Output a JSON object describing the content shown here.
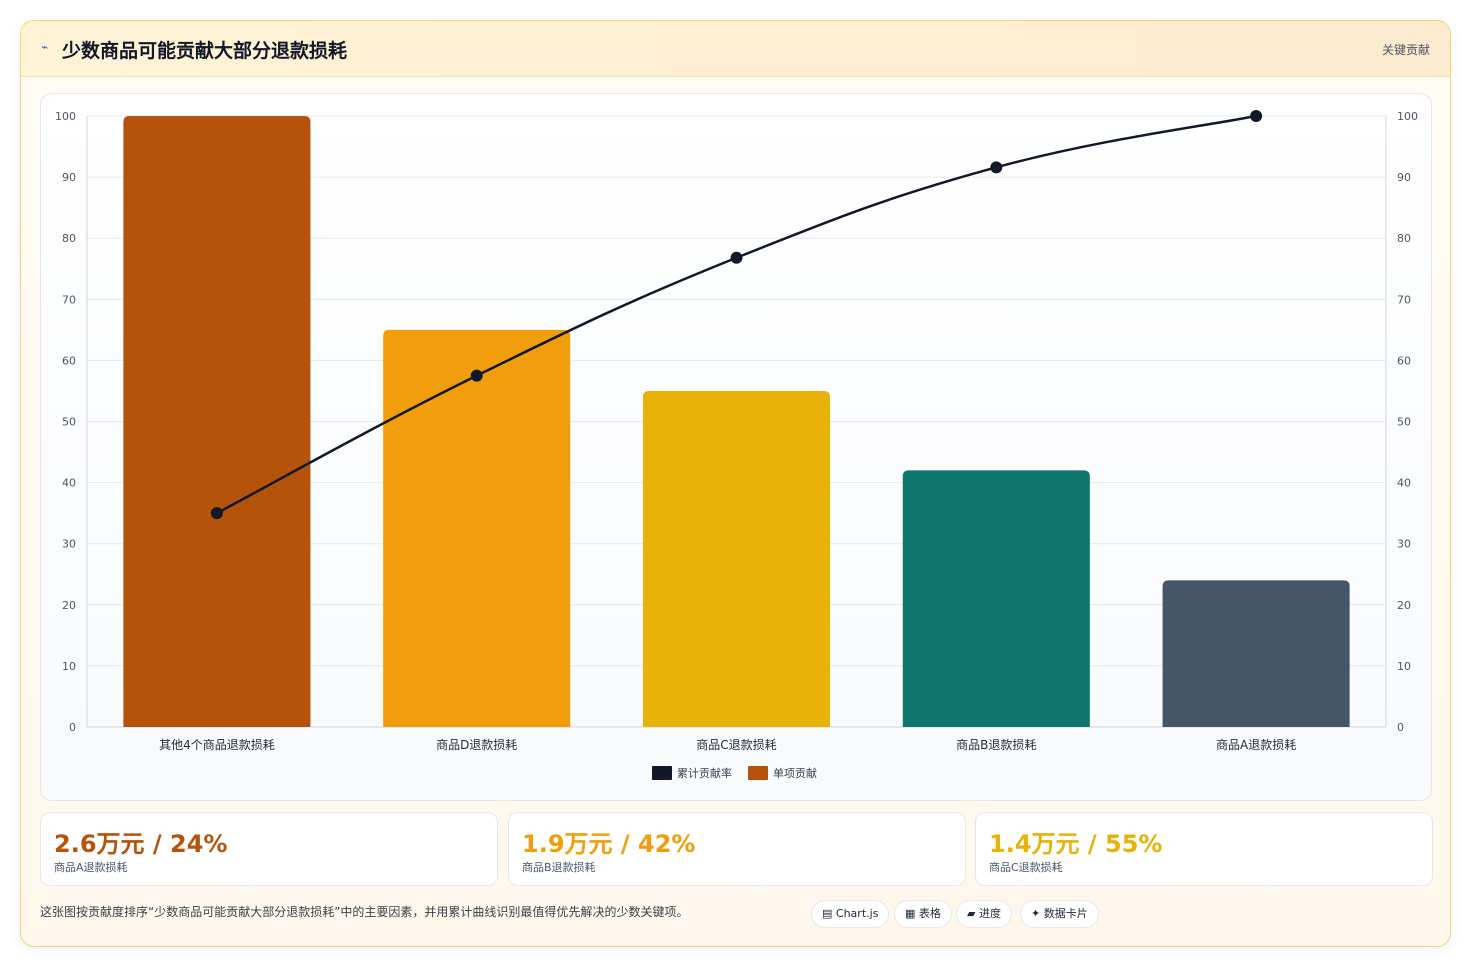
{
  "header": {
    "icon": "chart-icon",
    "title": "少数商品可能贡献大部分退款损耗",
    "right_label": "关键贡献"
  },
  "chart_data": {
    "type": "bar",
    "categories": [
      "其他4个商品退款损耗",
      "商品D退款损耗",
      "商品C退款损耗",
      "商品B退款损耗",
      "商品A退款损耗"
    ],
    "series": [
      {
        "name": "单项贡献",
        "type": "bar",
        "values": [
          100,
          65,
          55,
          42,
          24
        ],
        "colors": [
          "#b45309",
          "#f29e0c",
          "#e8b208",
          "#0f766e",
          "#475569"
        ]
      },
      {
        "name": "累计贡献率",
        "type": "line",
        "values": [
          35,
          57.5,
          76.8,
          91.6,
          100
        ],
        "color": "#111827"
      }
    ],
    "ylim": [
      0,
      100
    ],
    "y_ticks": [
      0,
      10,
      20,
      30,
      40,
      50,
      60,
      70,
      80,
      90,
      100
    ],
    "y2lim": [
      0,
      100
    ],
    "y2_ticks": [
      0,
      10,
      20,
      30,
      40,
      50,
      60,
      70,
      80,
      90,
      100
    ],
    "legend_position": "bottom",
    "legend": [
      {
        "label": "累计贡献率",
        "color": "#111827"
      },
      {
        "label": "单项贡献",
        "color": "#b45309"
      }
    ],
    "grid": true
  },
  "stats": [
    {
      "value": "2.6万元 / 24%",
      "label": "商品A退款损耗",
      "color": "#b45309"
    },
    {
      "value": "1.9万元 / 42%",
      "label": "商品B退款损耗",
      "color": "#f29e0c"
    },
    {
      "value": "1.4万元 / 55%",
      "label": "商品C退款损耗",
      "color": "#e8b208"
    }
  ],
  "footer": {
    "text": "这张图按贡献度排序“少数商品可能贡献大部分退款损耗”中的主要因素，并用累计曲线识别最值得优先解决的少数关键项。",
    "chips": [
      {
        "icon": "▤",
        "label": "Chart.js"
      },
      {
        "icon": "▦",
        "label": "表格"
      },
      {
        "icon": "▰",
        "label": "进度"
      },
      {
        "icon": "✦",
        "label": "数据卡片"
      }
    ]
  }
}
